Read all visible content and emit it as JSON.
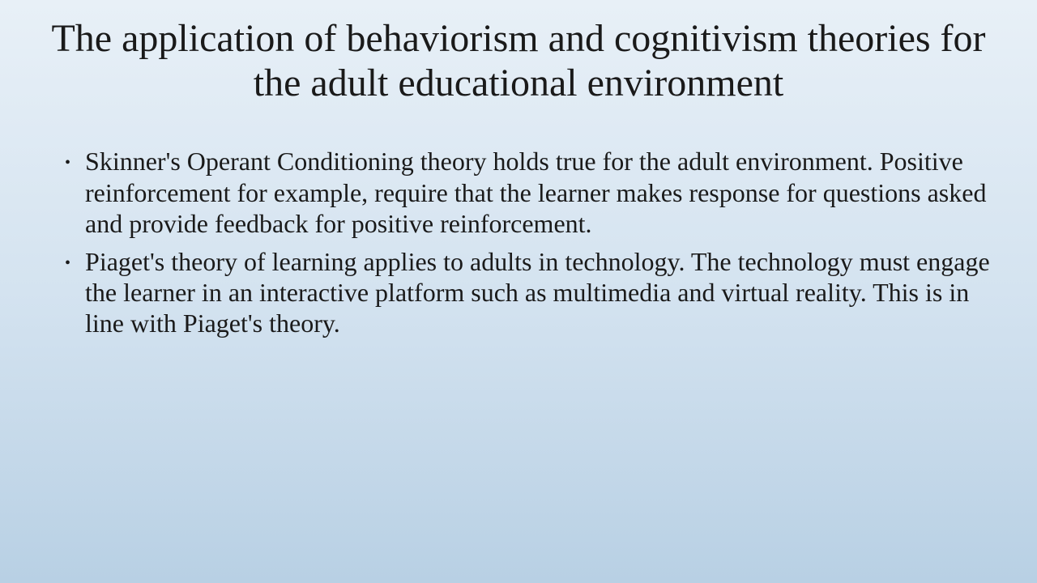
{
  "slide": {
    "title": "The application of behaviorism and cognitivism theories for the adult educational environment",
    "bullets": [
      "Skinner's Operant Conditioning theory holds true for the adult environment.  Positive reinforcement for example, require that the learner makes response for questions asked and provide feedback for positive reinforcement.",
      "Piaget's theory of learning applies to adults in technology.  The technology must engage the learner in an interactive platform such as multimedia and virtual reality.  This is in line with Piaget's theory."
    ]
  },
  "style": {
    "background_gradient_top": "#e8f0f7",
    "background_gradient_mid": "#d4e3f0",
    "background_gradient_bottom": "#b8d0e4",
    "text_color": "#1a1a1a",
    "title_fontsize": 48,
    "body_fontsize": 32,
    "font_family": "Times New Roman"
  }
}
